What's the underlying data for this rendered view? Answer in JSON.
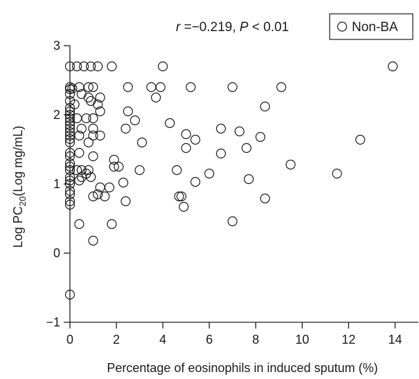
{
  "chart_data": {
    "type": "scatter",
    "xlabel": "Percentage of eosinophils in induced sputum (%)",
    "ylabel_prefix": "Log PC",
    "ylabel_sub": "20",
    "ylabel_suffix": "(Log  mg/mL)",
    "annotation": {
      "r_symbol": "r",
      "r_text": " =−0.219, ",
      "p_symbol": "P",
      "p_text": " < 0.01"
    },
    "legend": {
      "placement": "top-right",
      "entries": [
        "Non-BA"
      ]
    },
    "xlim": [
      0,
      15
    ],
    "ylim": [
      -1,
      3
    ],
    "xticks": [
      0,
      2,
      4,
      6,
      8,
      10,
      12,
      14
    ],
    "yticks": [
      -1,
      0,
      1,
      2,
      3
    ],
    "grid": false,
    "series": [
      {
        "name": "Non-BA",
        "marker": "open-circle",
        "color": "#1a1a1a",
        "points": [
          [
            0.0,
            2.7
          ],
          [
            0.3,
            2.7
          ],
          [
            0.6,
            2.7
          ],
          [
            0.9,
            2.7
          ],
          [
            1.2,
            2.7
          ],
          [
            1.8,
            2.7
          ],
          [
            4.0,
            2.7
          ],
          [
            13.9,
            2.7
          ],
          [
            0.0,
            2.4
          ],
          [
            0.0,
            2.37
          ],
          [
            0.1,
            2.38
          ],
          [
            0.4,
            2.4
          ],
          [
            0.8,
            2.4
          ],
          [
            1.0,
            2.4
          ],
          [
            2.5,
            2.4
          ],
          [
            3.5,
            2.4
          ],
          [
            3.9,
            2.4
          ],
          [
            5.2,
            2.4
          ],
          [
            7.0,
            2.4
          ],
          [
            9.1,
            2.4
          ],
          [
            0.0,
            2.3
          ],
          [
            0.0,
            2.2
          ],
          [
            0.5,
            2.3
          ],
          [
            0.8,
            2.25
          ],
          [
            1.3,
            2.25
          ],
          [
            3.7,
            2.25
          ],
          [
            1.2,
            2.15
          ],
          [
            0.9,
            2.2
          ],
          [
            0.2,
            2.15
          ],
          [
            1.3,
            2.05
          ],
          [
            2.5,
            2.05
          ],
          [
            8.4,
            2.12
          ],
          [
            0.0,
            2.1
          ],
          [
            0.0,
            2.05
          ],
          [
            0.0,
            2.0
          ],
          [
            0.0,
            1.95
          ],
          [
            0.0,
            1.9
          ],
          [
            0.0,
            1.85
          ],
          [
            0.0,
            1.8
          ],
          [
            0.0,
            1.75
          ],
          [
            0.0,
            1.7
          ],
          [
            0.0,
            1.65
          ],
          [
            0.0,
            1.6
          ],
          [
            0.3,
            1.95
          ],
          [
            0.7,
            1.95
          ],
          [
            1.0,
            1.95
          ],
          [
            0.5,
            1.8
          ],
          [
            0.4,
            1.7
          ],
          [
            1.0,
            1.8
          ],
          [
            1.0,
            1.7
          ],
          [
            1.3,
            1.7
          ],
          [
            0.8,
            1.6
          ],
          [
            2.4,
            1.8
          ],
          [
            2.8,
            1.92
          ],
          [
            4.3,
            1.88
          ],
          [
            5.0,
            1.72
          ],
          [
            6.5,
            1.8
          ],
          [
            7.3,
            1.76
          ],
          [
            3.1,
            1.6
          ],
          [
            5.4,
            1.64
          ],
          [
            8.2,
            1.68
          ],
          [
            5.0,
            1.52
          ],
          [
            7.6,
            1.52
          ],
          [
            6.5,
            1.44
          ],
          [
            12.5,
            1.64
          ],
          [
            0.0,
            1.45
          ],
          [
            0.0,
            1.4
          ],
          [
            0.0,
            1.3
          ],
          [
            0.0,
            1.25
          ],
          [
            0.0,
            1.2
          ],
          [
            0.0,
            1.1
          ],
          [
            0.0,
            1.05
          ],
          [
            0.0,
            1.0
          ],
          [
            0.4,
            1.45
          ],
          [
            1.0,
            1.4
          ],
          [
            0.3,
            1.2
          ],
          [
            0.5,
            1.2
          ],
          [
            0.8,
            1.2
          ],
          [
            0.7,
            1.15
          ],
          [
            0.5,
            1.1
          ],
          [
            0.9,
            1.1
          ],
          [
            0.4,
            1.05
          ],
          [
            1.9,
            1.35
          ],
          [
            1.9,
            1.25
          ],
          [
            2.1,
            1.25
          ],
          [
            3.0,
            1.2
          ],
          [
            4.6,
            1.2
          ],
          [
            6.0,
            1.15
          ],
          [
            9.5,
            1.28
          ],
          [
            11.5,
            1.15
          ],
          [
            7.7,
            1.07
          ],
          [
            5.4,
            1.03
          ],
          [
            2.3,
            1.02
          ],
          [
            1.3,
            0.95
          ],
          [
            1.7,
            0.95
          ],
          [
            1.2,
            0.85
          ],
          [
            1.0,
            0.82
          ],
          [
            1.5,
            0.82
          ],
          [
            2.4,
            0.75
          ],
          [
            4.7,
            0.82
          ],
          [
            4.8,
            0.82
          ],
          [
            4.9,
            0.67
          ],
          [
            8.4,
            0.79
          ],
          [
            0.0,
            0.9
          ],
          [
            0.0,
            0.85
          ],
          [
            0.0,
            0.75
          ],
          [
            0.0,
            0.7
          ],
          [
            0.4,
            0.42
          ],
          [
            1.8,
            0.42
          ],
          [
            7.0,
            0.46
          ],
          [
            1.0,
            0.18
          ],
          [
            0.0,
            -0.6
          ]
        ]
      }
    ]
  }
}
